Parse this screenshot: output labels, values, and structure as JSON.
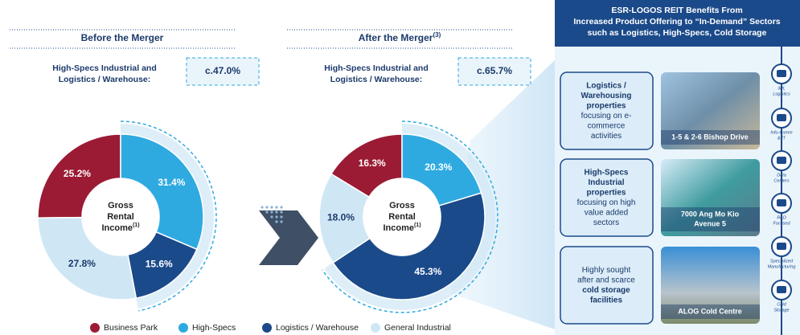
{
  "chart_data": [
    {
      "type": "pie",
      "title": "Before the Merger",
      "subtitle": [
        "High-Specs Industrial and",
        "Logistics / Warehouse:"
      ],
      "annotation": "c.47.0%",
      "center_label": [
        "Gross",
        "Rental",
        "Income"
      ],
      "center_note": "(1)",
      "categories": [
        "Business Park",
        "High-Specs",
        "Logistics / Warehouse",
        "General Industrial"
      ],
      "values": [
        25.2,
        31.4,
        15.6,
        27.8
      ],
      "value_labels": [
        "25.2%",
        "31.4%",
        "15.6%",
        "27.8%"
      ],
      "colors": [
        "#9b1b34",
        "#2eaae1",
        "#1b4a8a",
        "#cfe7f5"
      ]
    },
    {
      "type": "pie",
      "title": "After the Merger",
      "title_note": "(3)",
      "subtitle": [
        "High-Specs Industrial and",
        "Logistics / Warehouse:"
      ],
      "annotation": "c.65.7%",
      "center_label": [
        "Gross",
        "Rental",
        "Income"
      ],
      "center_note": "(1)",
      "categories": [
        "Business Park",
        "High-Specs",
        "Logistics / Warehouse",
        "General Industrial"
      ],
      "values": [
        16.3,
        20.3,
        45.3,
        18.0
      ],
      "value_labels": [
        "16.3%",
        "20.3%",
        "45.3%",
        "18.0%"
      ],
      "colors": [
        "#9b1b34",
        "#2eaae1",
        "#1b4a8a",
        "#cfe7f5"
      ]
    }
  ],
  "panel": {
    "header": [
      "ESR-LOGOS REIT Benefits From",
      "Increased Product Offering to “In-Demand” Sectors",
      "such as Logistics, High-Specs, Cold Storage"
    ],
    "items": [
      {
        "lines": [
          {
            "text": "Logistics /",
            "bold": true
          },
          {
            "text": "Warehousing",
            "bold": true
          },
          {
            "text": "properties",
            "bold": true
          },
          {
            "text": "focusing on e-",
            "bold": false
          },
          {
            "text": "commerce",
            "bold": false
          },
          {
            "text": "activities",
            "bold": false
          }
        ],
        "image_label": [
          "1-5 & 2-6 Bishop Drive"
        ]
      },
      {
        "lines": [
          {
            "text": "High-Specs",
            "bold": true
          },
          {
            "text": "Industrial",
            "bold": true
          },
          {
            "text": "properties",
            "bold": true
          },
          {
            "text": "focusing on high",
            "bold": false
          },
          {
            "text": "value added",
            "bold": false
          },
          {
            "text": "sectors",
            "bold": false
          }
        ],
        "image_label": [
          "7000 Ang Mo Kio",
          "Avenue 5"
        ]
      },
      {
        "lines": [
          {
            "text": "Highly sought",
            "bold": false
          },
          {
            "text": "after and scarce",
            "bold": false
          },
          {
            "text": "cold storage",
            "bold": true
          },
          {
            "text": "facilities",
            "bold": true
          }
        ],
        "image_label": [
          "ALOG Cold Centre"
        ]
      }
    ],
    "icons": [
      [
        "3PL",
        "Logistics"
      ],
      [
        "Info-Comm",
        "& IT"
      ],
      [
        "Data",
        "Centers"
      ],
      [
        "R&D",
        "Focused"
      ],
      [
        "Specialized",
        "Manufacturing"
      ],
      [
        "Cold",
        "Storage"
      ]
    ]
  }
}
